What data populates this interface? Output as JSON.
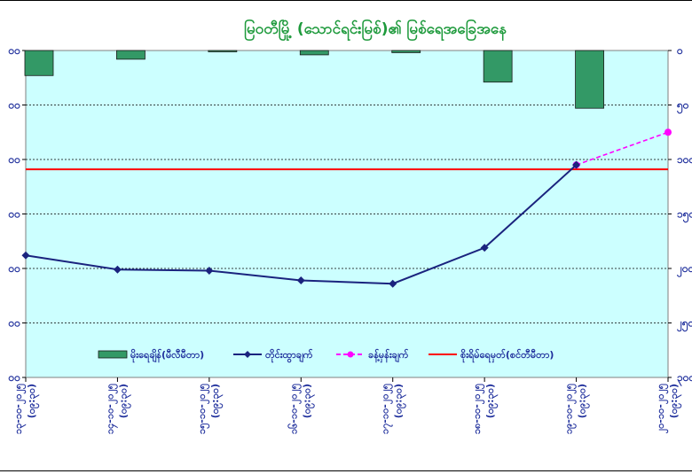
{
  "chart_data": {
    "type": "bar+line",
    "title": "မြဝတီမြို့ (သောင်ရင်းမြစ်)၏ မြစ်ရေအခြေအနေ",
    "categories": [
      "၁၃-၁၀-၂၀၂၅",
      "၁၄-၁၀-၂၀၂၅",
      "၁၅-၁၀-၂၀၂၅",
      "၁၆-၁၀-၂၀၂၅",
      "၁၇-၁၀-၂၀၂၅",
      "၁၈-၁၀-၂၀၂၅",
      "၁၉-၁၀-၂၀၂၅",
      "၂၀-၁၀-၂၀၂၅"
    ],
    "category_time_label": "(၀၉:၃၀)",
    "left_axis": {
      "ticks": [
        "၀၀",
        "၀၀",
        "၀၀",
        "၀၀",
        "၀၀",
        "၀၀",
        "၀၀"
      ],
      "reversed": true
    },
    "right_axis": {
      "ticks": [
        "၀",
        "၅၀",
        "၁၀၀",
        "၁၅၀",
        "၂၀၀",
        "၂၅၀",
        "၃၀၀"
      ],
      "range": [
        0,
        300
      ],
      "reversed": true
    },
    "series": [
      {
        "name": "မိုးရေချိန်(မီလီမီတာ)",
        "kind": "bar",
        "color": "#339966",
        "values": [
          23,
          8,
          1,
          4,
          2,
          29,
          53,
          null
        ]
      },
      {
        "name": "တိုင်းထွာချက်",
        "kind": "line",
        "color": "#1a237e",
        "values": [
          188,
          201,
          202,
          211,
          214,
          181,
          105,
          null
        ]
      },
      {
        "name": "ခန့်မှန်းချက်",
        "kind": "dashed-line",
        "color": "#ff00ff",
        "values": [
          null,
          null,
          null,
          null,
          null,
          null,
          105,
          75
        ]
      },
      {
        "name": "စိုးရိမ်ရေမှတ်(စင်တီမီတာ)",
        "kind": "reference-line",
        "color": "#ff0000",
        "value": 109
      }
    ],
    "grid": true,
    "legend_position": "bottom-center",
    "colors": {
      "plot_bg": "#ccffff",
      "axis_text": "#1f2f9c",
      "title": "#1e9a3c"
    }
  }
}
